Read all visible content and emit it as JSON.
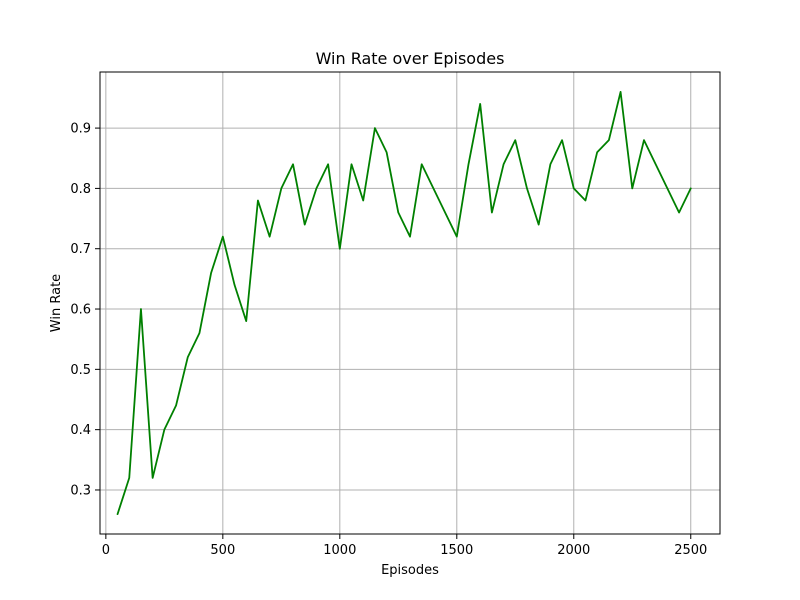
{
  "chart_data": {
    "type": "line",
    "title": "Win Rate over Episodes",
    "xlabel": "Episodes",
    "ylabel": "Win Rate",
    "xlim": [
      -25,
      2625
    ],
    "ylim": [
      0.227,
      0.993
    ],
    "xticks": [
      0,
      500,
      1000,
      1500,
      2000,
      2500
    ],
    "yticks": [
      0.3,
      0.4,
      0.5,
      0.6,
      0.7,
      0.8,
      0.9
    ],
    "grid": true,
    "series": [
      {
        "color": "#008000",
        "x": [
          50,
          100,
          150,
          200,
          250,
          300,
          350,
          400,
          450,
          500,
          550,
          600,
          650,
          700,
          750,
          800,
          850,
          900,
          950,
          1000,
          1050,
          1100,
          1150,
          1200,
          1250,
          1300,
          1350,
          1400,
          1450,
          1500,
          1550,
          1600,
          1650,
          1700,
          1750,
          1800,
          1850,
          1900,
          1950,
          2000,
          2050,
          2100,
          2150,
          2200,
          2250,
          2300,
          2350,
          2400,
          2450,
          2500
        ],
        "y": [
          0.26,
          0.32,
          0.6,
          0.32,
          0.4,
          0.44,
          0.52,
          0.56,
          0.66,
          0.72,
          0.64,
          0.58,
          0.78,
          0.72,
          0.8,
          0.84,
          0.74,
          0.8,
          0.84,
          0.7,
          0.84,
          0.78,
          0.9,
          0.86,
          0.76,
          0.72,
          0.84,
          0.8,
          0.76,
          0.72,
          0.84,
          0.94,
          0.76,
          0.84,
          0.88,
          0.8,
          0.74,
          0.84,
          0.88,
          0.8,
          0.78,
          0.86,
          0.88,
          0.96,
          0.8,
          0.88,
          0.84,
          0.8,
          0.76,
          0.8
        ]
      }
    ]
  }
}
